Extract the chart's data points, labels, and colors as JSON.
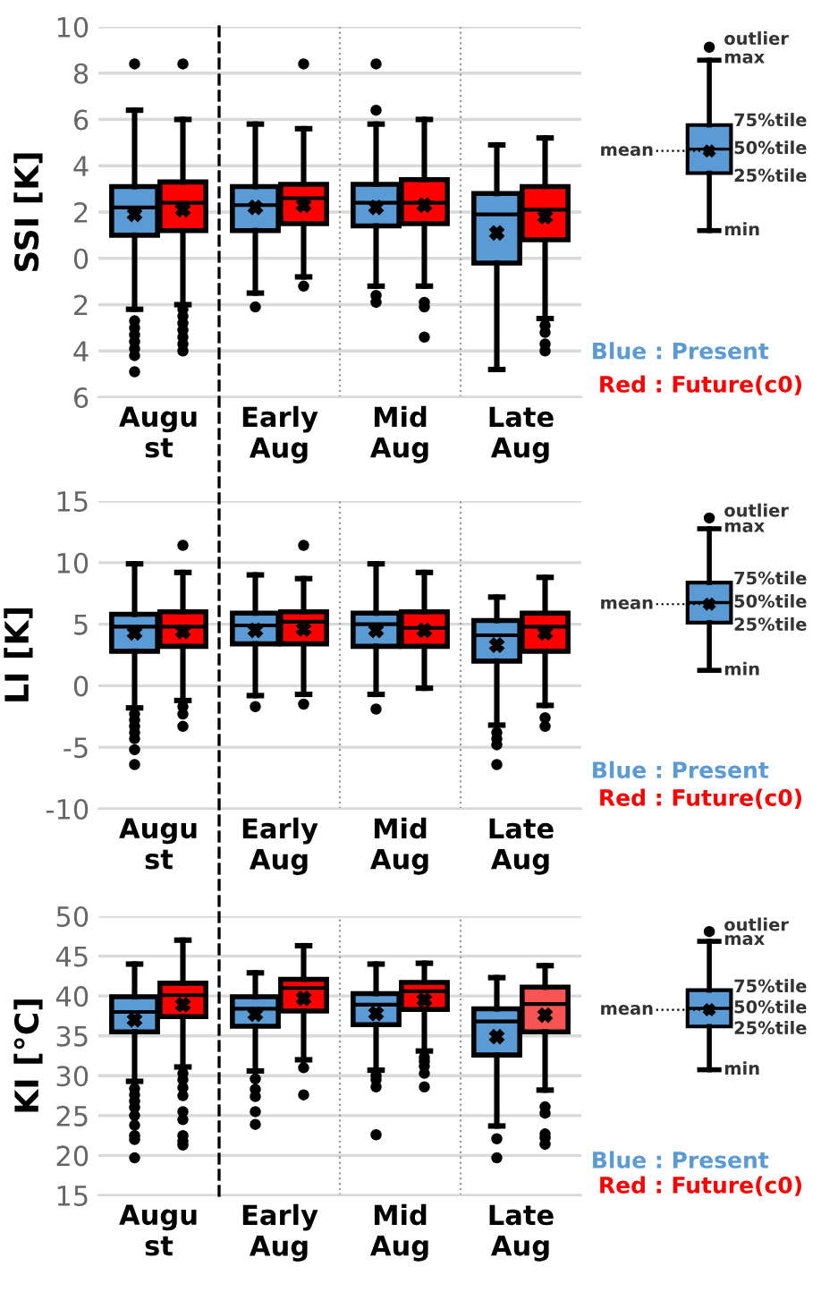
{
  "chart_data": [
    {
      "type": "box",
      "ylabel": "SSI [K]",
      "categories": [
        "Augu\nst",
        "Early\nAug",
        "Mid\nAug",
        "Late\nAug"
      ],
      "ylim": [
        -6,
        10
      ],
      "yticks": [
        10,
        8,
        6,
        4,
        2,
        0,
        {
          "value": -2,
          "label": "2"
        },
        {
          "value": -4,
          "label": "4"
        },
        {
          "value": -6,
          "label": "6"
        }
      ],
      "grid": "y",
      "legend": "right",
      "marker": "cross",
      "annotations": [
        "outlier",
        "max",
        "75%tile",
        "50%tile",
        "25%tile",
        "mean",
        "min"
      ],
      "series": [
        {
          "name": "Blue : Present",
          "color": "#5b9bd5",
          "boxes": [
            {
              "low": -2.2,
              "q1": 1.0,
              "median": 2.2,
              "q3": 3.1,
              "high": 6.4,
              "mean": 1.9,
              "outliers": [
                8.4,
                -2.7,
                -3.0,
                -3.3,
                -3.6,
                -3.9,
                -4.2,
                -4.9
              ]
            },
            {
              "low": -1.5,
              "q1": 1.2,
              "median": 2.3,
              "q3": 3.1,
              "high": 5.8,
              "mean": 2.2,
              "outliers": [
                -2.1
              ]
            },
            {
              "low": -1.2,
              "q1": 1.4,
              "median": 2.4,
              "q3": 3.2,
              "high": 5.8,
              "mean": 2.2,
              "outliers": [
                8.4,
                6.4,
                -1.6,
                -1.9
              ]
            },
            {
              "low": -4.8,
              "q1": -0.2,
              "median": 1.9,
              "q3": 2.8,
              "high": 4.9,
              "mean": 1.1
            }
          ]
        },
        {
          "name": "Red : Future(c0)",
          "color": "#ff0000",
          "boxes": [
            {
              "low": -2.0,
              "q1": 1.2,
              "median": 2.4,
              "q3": 3.3,
              "high": 6.0,
              "mean": 2.1,
              "outliers": [
                8.4,
                -2.2,
                -2.5,
                -2.8,
                -3.1,
                -3.4,
                -3.7,
                -4.0
              ]
            },
            {
              "low": -0.8,
              "q1": 1.5,
              "median": 2.6,
              "q3": 3.2,
              "high": 5.6,
              "mean": 2.3,
              "outliers": [
                8.4,
                -1.2
              ]
            },
            {
              "low": -1.2,
              "q1": 1.5,
              "median": 2.4,
              "q3": 3.4,
              "high": 6.0,
              "mean": 2.3,
              "outliers": [
                -1.9,
                -2.1,
                -3.4
              ]
            },
            {
              "low": -2.6,
              "q1": 0.8,
              "median": 2.1,
              "q3": 3.1,
              "high": 5.2,
              "mean": 1.8,
              "outliers": [
                -2.9,
                -3.2,
                -3.7,
                -4.0
              ]
            }
          ]
        }
      ]
    },
    {
      "type": "box",
      "ylabel": "LI [K]",
      "categories": [
        "Augu\nst",
        "Early\nAug",
        "Mid\nAug",
        "Late\nAug"
      ],
      "ylim": [
        -10,
        15
      ],
      "yticks": [
        15,
        10,
        5,
        0,
        -5,
        -10
      ],
      "grid": "y",
      "legend": "right",
      "marker": "cross",
      "annotations": [
        "outlier",
        "max",
        "75%tile",
        "50%tile",
        "25%tile",
        "mean",
        "min"
      ],
      "series": [
        {
          "name": "Blue : Present",
          "color": "#5b9bd5",
          "boxes": [
            {
              "low": -1.8,
              "q1": 2.8,
              "median": 4.8,
              "q3": 5.8,
              "high": 9.9,
              "mean": 4.3,
              "outliers": [
                -2.3,
                -2.8,
                -3.3,
                -3.8,
                -4.3,
                -5.2,
                -6.4
              ]
            },
            {
              "low": -0.8,
              "q1": 3.4,
              "median": 4.9,
              "q3": 5.9,
              "high": 9.0,
              "mean": 4.5,
              "outliers": [
                -1.7
              ]
            },
            {
              "low": -0.7,
              "q1": 3.2,
              "median": 5.0,
              "q3": 5.9,
              "high": 9.9,
              "mean": 4.5,
              "outliers": [
                -1.9
              ]
            },
            {
              "low": -3.2,
              "q1": 2.0,
              "median": 4.1,
              "q3": 5.3,
              "high": 7.2,
              "mean": 3.3,
              "outliers": [
                -3.8,
                -4.3,
                -4.8,
                -6.4
              ]
            }
          ]
        },
        {
          "name": "Red : Future(c0)",
          "color": "#ff0000",
          "boxes": [
            {
              "low": -1.2,
              "q1": 3.2,
              "median": 4.8,
              "q3": 6.0,
              "high": 9.2,
              "mean": 4.4,
              "outliers": [
                11.4,
                -1.7,
                -2.3,
                -3.3
              ]
            },
            {
              "low": -0.7,
              "q1": 3.4,
              "median": 5.2,
              "q3": 6.0,
              "high": 8.7,
              "mean": 4.6,
              "outliers": [
                11.4,
                -1.5
              ]
            },
            {
              "low": -0.2,
              "q1": 3.2,
              "median": 4.7,
              "q3": 6.0,
              "high": 9.2,
              "mean": 4.5
            },
            {
              "low": -1.6,
              "q1": 2.8,
              "median": 4.8,
              "q3": 5.9,
              "high": 8.8,
              "mean": 4.3,
              "outliers": [
                -2.6,
                -3.3
              ]
            }
          ]
        }
      ]
    },
    {
      "type": "box",
      "ylabel": "KI [°C]",
      "categories": [
        "Augu\nst",
        "Early\nAug",
        "Mid\nAug",
        "Late\nAug"
      ],
      "ylim": [
        15,
        50
      ],
      "yticks": [
        50,
        45,
        40,
        35,
        30,
        25,
        20,
        15
      ],
      "grid": "y",
      "legend": "right",
      "marker": "cross",
      "annotations": [
        "outlier",
        "max",
        "75%tile",
        "50%tile",
        "25%tile",
        "mean",
        "min"
      ],
      "series": [
        {
          "name": "Blue : Present",
          "color": "#5b9bd5",
          "boxes": [
            {
              "low": 29.3,
              "q1": 35.5,
              "median": 38.0,
              "q3": 39.9,
              "high": 44.0,
              "mean": 37.0,
              "outliers": [
                28.4,
                27.6,
                26.8,
                26.0,
                25.0,
                23.8,
                22.5,
                22.0,
                19.7
              ]
            },
            {
              "low": 30.6,
              "q1": 36.2,
              "median": 38.4,
              "q3": 39.9,
              "high": 42.9,
              "mean": 37.7,
              "outliers": [
                29.6,
                28.3,
                27.4,
                25.5,
                23.9
              ]
            },
            {
              "low": 30.7,
              "q1": 36.4,
              "median": 38.9,
              "q3": 40.3,
              "high": 44.0,
              "mean": 37.8,
              "outliers": [
                30.0,
                29.5,
                28.6,
                22.6
              ]
            },
            {
              "low": 23.7,
              "q1": 32.6,
              "median": 36.8,
              "q3": 38.4,
              "high": 42.3,
              "mean": 34.9,
              "outliers": [
                22.1,
                19.7
              ]
            }
          ]
        },
        {
          "name": "Red : Future(c0)",
          "color": "#ff0000",
          "colors": [
            "#ff0000",
            "#ff0000",
            "#ff0000",
            "#f85454"
          ],
          "boxes": [
            {
              "low": 31.1,
              "q1": 37.4,
              "median": 40.1,
              "q3": 41.6,
              "high": 47.0,
              "mean": 38.9,
              "outliers": [
                30.3,
                29.5,
                28.5,
                27.5,
                25.5,
                24.5,
                22.5,
                21.8,
                21.3
              ]
            },
            {
              "low": 32.0,
              "q1": 38.1,
              "median": 41.0,
              "q3": 42.1,
              "high": 46.3,
              "mean": 39.7,
              "outliers": [
                31.0,
                27.6
              ]
            },
            {
              "low": 33.1,
              "q1": 38.3,
              "median": 40.6,
              "q3": 41.7,
              "high": 44.1,
              "mean": 39.5,
              "outliers": [
                32.3,
                31.8,
                31.2,
                30.3,
                28.6
              ]
            },
            {
              "low": 28.2,
              "q1": 35.5,
              "median": 39.0,
              "q3": 41.1,
              "high": 43.8,
              "mean": 37.6,
              "outliers": [
                26.1,
                25.3,
                22.7,
                22.2,
                21.4
              ]
            }
          ]
        }
      ]
    }
  ]
}
